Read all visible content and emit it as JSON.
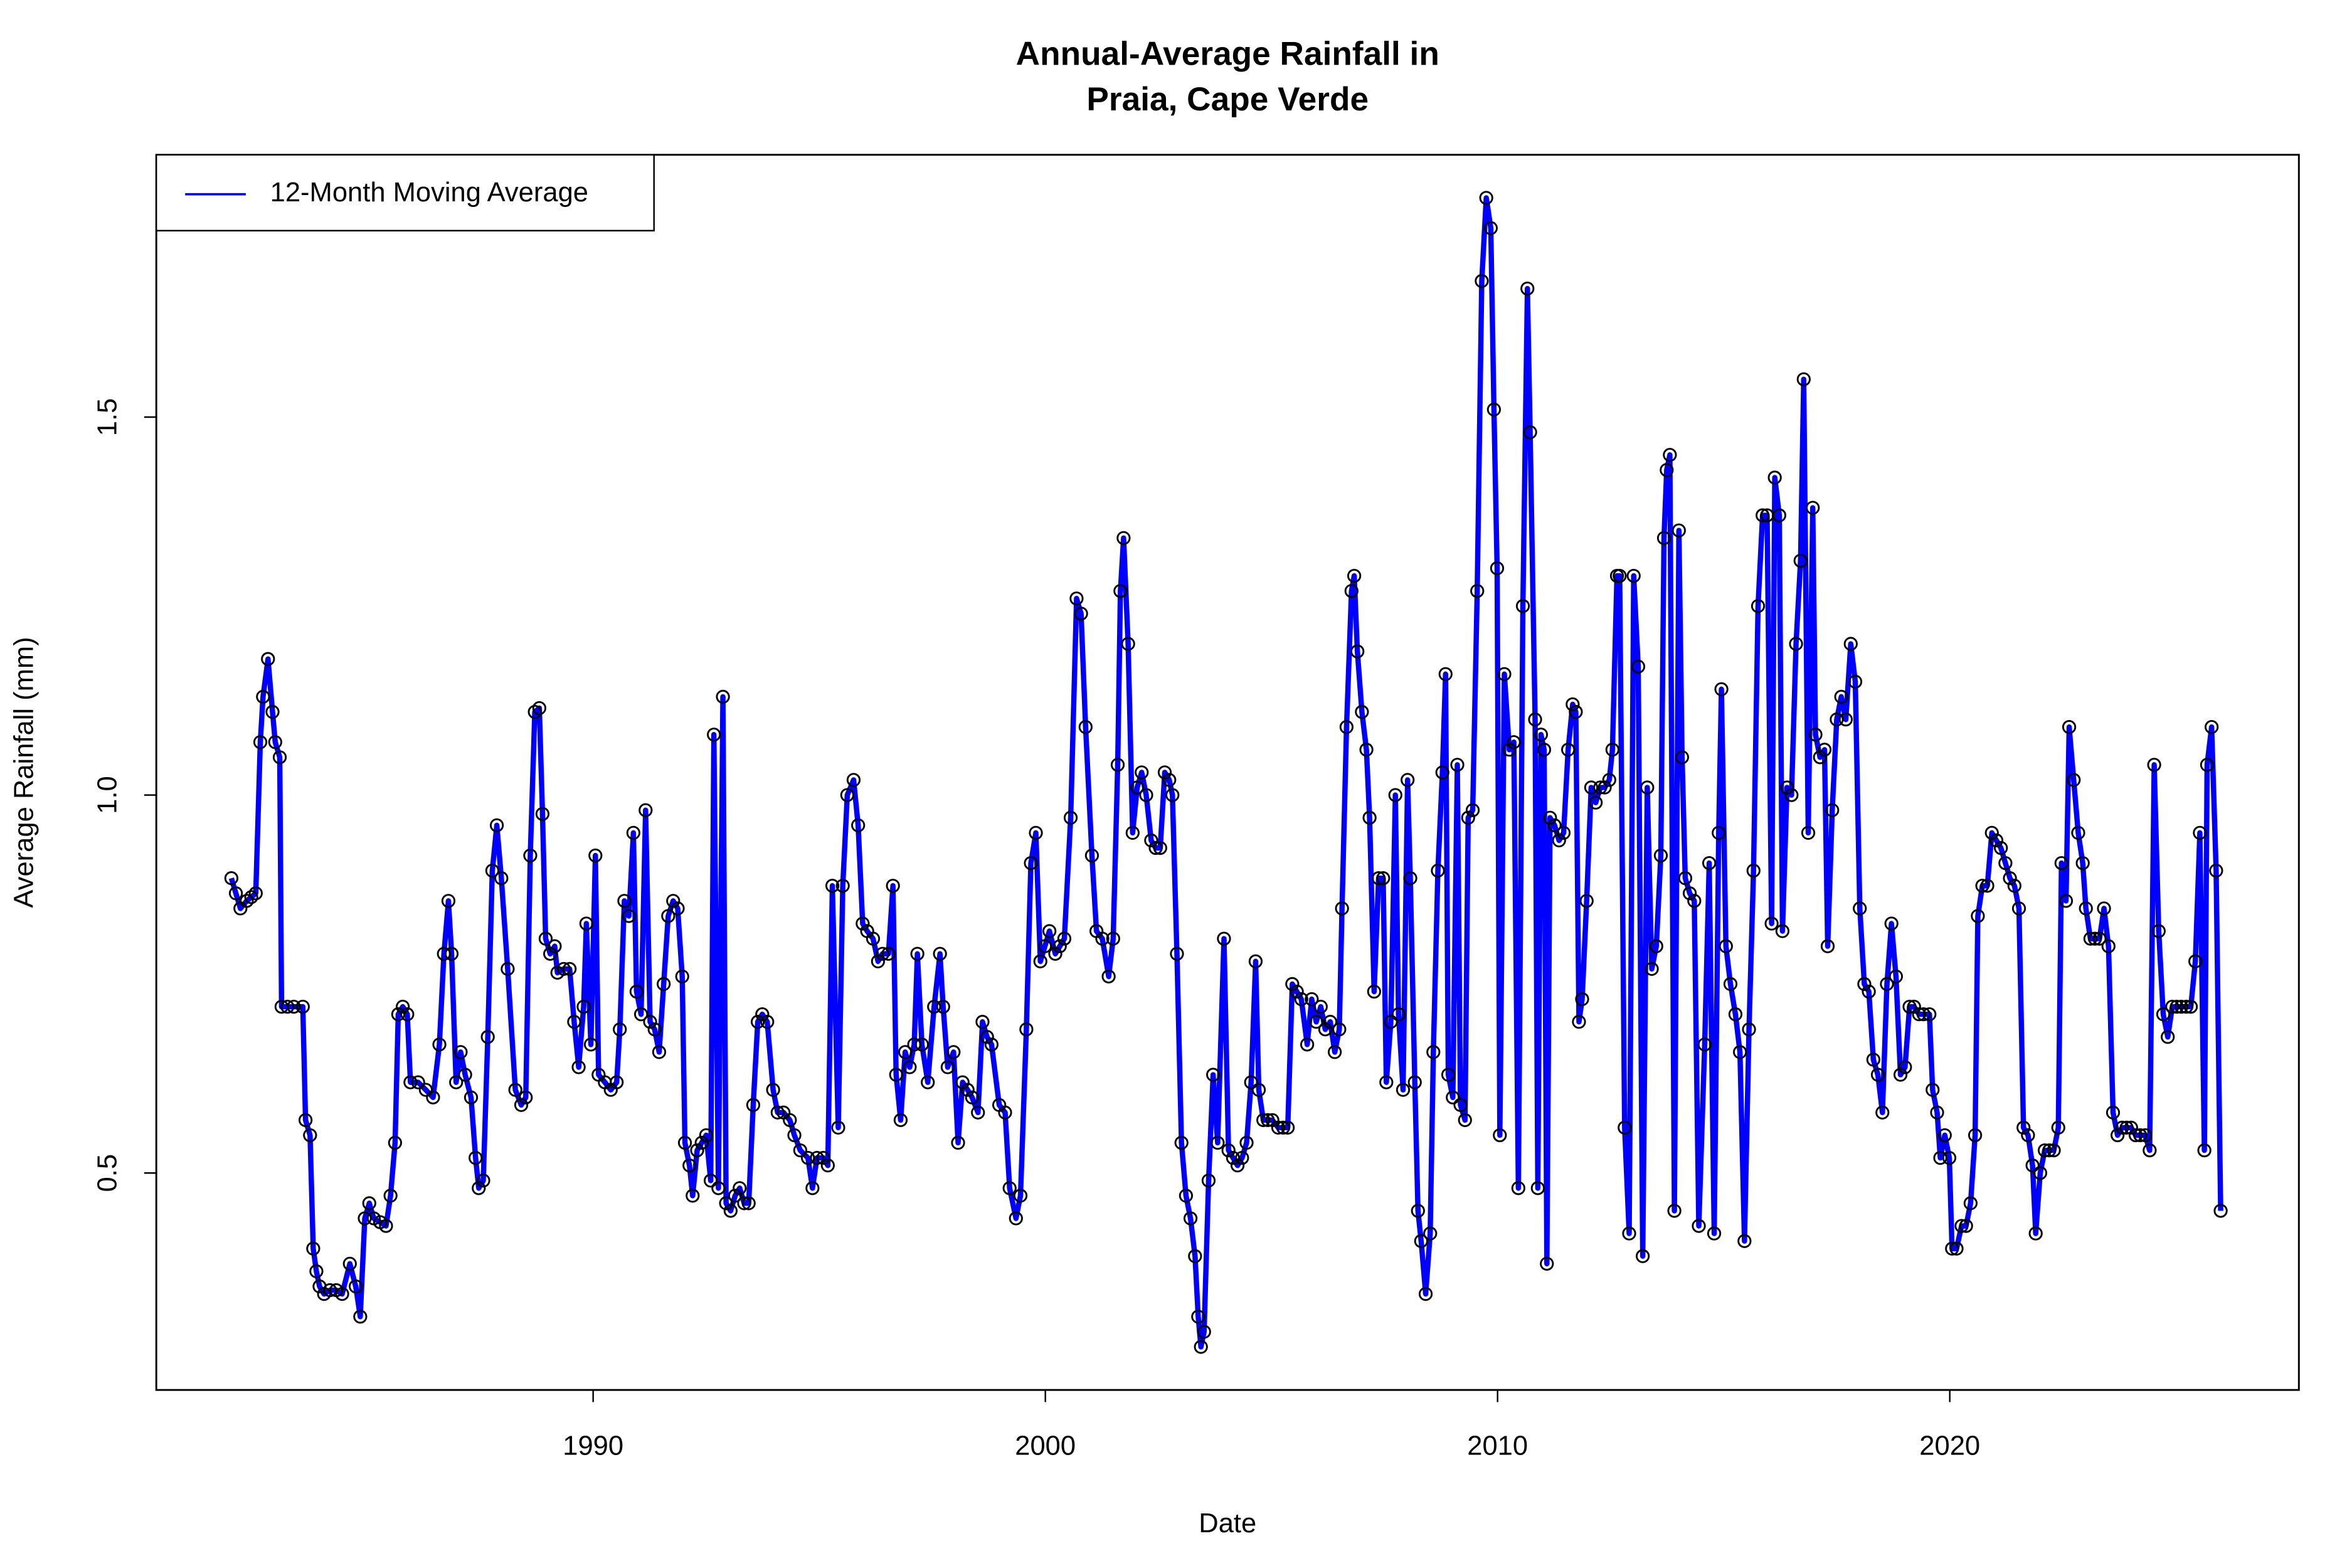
{
  "chart_data": {
    "type": "line",
    "title": [
      "Annual-Average Rainfall in",
      "Praia, Cape Verde"
    ],
    "x_label": "Date",
    "y_label": "Average Rainfall (mm)",
    "xlim": [
      1980.34,
      2027.72
    ],
    "ylim": [
      0.213,
      1.847
    ],
    "xticks": [
      1990,
      2000,
      2010,
      2020
    ],
    "yticks": [
      0.5,
      {
        "value": 1,
        "label": "1.0"
      },
      1.5
    ],
    "legend_position": "top-left",
    "marker_color": "#000000",
    "x": [
      1982.0,
      1982.1,
      1982.2,
      1982.34,
      1982.44,
      1982.54,
      1982.64,
      1982.7,
      1982.81,
      1982.91,
      1982.97,
      1983.07,
      1983.11,
      1983.24,
      1983.38,
      1983.58,
      1983.64,
      1983.74,
      1983.81,
      1983.88,
      1983.95,
      1984.05,
      1984.18,
      1984.32,
      1984.45,
      1984.62,
      1984.75,
      1984.85,
      1984.95,
      1985.05,
      1985.15,
      1985.29,
      1985.42,
      1985.52,
      1985.62,
      1985.69,
      1985.79,
      1985.89,
      1985.96,
      1986.13,
      1986.3,
      1986.46,
      1986.6,
      1986.7,
      1986.8,
      1986.87,
      1986.97,
      1987.07,
      1987.17,
      1987.3,
      1987.4,
      1987.47,
      1987.57,
      1987.67,
      1987.77,
      1987.87,
      1987.97,
      1988.11,
      1988.28,
      1988.41,
      1988.51,
      1988.61,
      1988.71,
      1988.81,
      1988.88,
      1988.95,
      1989.05,
      1989.15,
      1989.21,
      1989.35,
      1989.48,
      1989.58,
      1989.68,
      1989.79,
      1989.85,
      1989.95,
      1990.05,
      1990.12,
      1990.26,
      1990.39,
      1990.52,
      1990.59,
      1990.69,
      1990.79,
      1990.89,
      1990.96,
      1991.06,
      1991.16,
      1991.26,
      1991.36,
      1991.46,
      1991.56,
      1991.66,
      1991.77,
      1991.87,
      1991.97,
      1992.03,
      1992.13,
      1992.2,
      1992.3,
      1992.4,
      1992.5,
      1992.6,
      1992.67,
      1992.77,
      1992.87,
      1992.94,
      1993.04,
      1993.14,
      1993.24,
      1993.34,
      1993.44,
      1993.54,
      1993.64,
      1993.74,
      1993.85,
      1993.98,
      1994.08,
      1994.21,
      1994.35,
      1994.45,
      1994.58,
      1994.75,
      1994.85,
      1994.95,
      1995.09,
      1995.19,
      1995.29,
      1995.42,
      1995.52,
      1995.62,
      1995.76,
      1995.86,
      1995.96,
      1996.06,
      1996.19,
      1996.3,
      1996.4,
      1996.53,
      1996.63,
      1996.7,
      1996.8,
      1996.9,
      1997.0,
      1997.1,
      1997.17,
      1997.27,
      1997.4,
      1997.54,
      1997.67,
      1997.74,
      1997.84,
      1997.97,
      1998.07,
      1998.17,
      1998.28,
      1998.38,
      1998.51,
      1998.61,
      1998.71,
      1998.81,
      1998.98,
      1999.11,
      1999.21,
      1999.35,
      1999.45,
      1999.58,
      1999.68,
      1999.79,
      1999.89,
      1999.99,
      2000.09,
      2000.22,
      2000.32,
      2000.42,
      2000.56,
      2000.69,
      2000.79,
      2000.89,
      2001.03,
      2001.13,
      2001.26,
      2001.4,
      2001.5,
      2001.6,
      2001.66,
      2001.73,
      2001.83,
      2001.93,
      2002.03,
      2002.13,
      2002.23,
      2002.34,
      2002.44,
      2002.54,
      2002.64,
      2002.74,
      2002.81,
      2002.91,
      2003.01,
      2003.11,
      2003.21,
      2003.31,
      2003.38,
      2003.44,
      2003.51,
      2003.61,
      2003.71,
      2003.81,
      2003.95,
      2004.05,
      2004.15,
      2004.25,
      2004.35,
      2004.45,
      2004.55,
      2004.65,
      2004.72,
      2004.82,
      2004.92,
      2005.02,
      2005.15,
      2005.26,
      2005.36,
      2005.46,
      2005.56,
      2005.66,
      2005.79,
      2005.89,
      2005.99,
      2006.09,
      2006.19,
      2006.3,
      2006.4,
      2006.5,
      2006.56,
      2006.66,
      2006.77,
      2006.83,
      2006.9,
      2007.0,
      2007.1,
      2007.17,
      2007.27,
      2007.37,
      2007.47,
      2007.54,
      2007.64,
      2007.74,
      2007.81,
      2007.91,
      2008.01,
      2008.07,
      2008.17,
      2008.24,
      2008.31,
      2008.41,
      2008.51,
      2008.58,
      2008.68,
      2008.78,
      2008.85,
      2008.91,
      2009.01,
      2009.11,
      2009.18,
      2009.28,
      2009.35,
      2009.45,
      2009.55,
      2009.65,
      2009.75,
      2009.85,
      2009.92,
      2009.99,
      2010.05,
      2010.15,
      2010.26,
      2010.36,
      2010.46,
      2010.56,
      2010.66,
      2010.72,
      2010.83,
      2010.89,
      2010.96,
      2011.03,
      2011.09,
      2011.16,
      2011.26,
      2011.36,
      2011.46,
      2011.56,
      2011.66,
      2011.73,
      2011.8,
      2011.87,
      2011.97,
      2012.07,
      2012.17,
      2012.27,
      2012.37,
      2012.47,
      2012.54,
      2012.64,
      2012.7,
      2012.81,
      2012.91,
      2013.01,
      2013.11,
      2013.21,
      2013.31,
      2013.41,
      2013.51,
      2013.61,
      2013.68,
      2013.74,
      2013.81,
      2013.91,
      2014.01,
      2014.08,
      2014.15,
      2014.25,
      2014.35,
      2014.45,
      2014.58,
      2014.68,
      2014.79,
      2014.89,
      2014.95,
      2015.05,
      2015.15,
      2015.26,
      2015.36,
      2015.46,
      2015.56,
      2015.66,
      2015.76,
      2015.86,
      2015.96,
      2016.06,
      2016.13,
      2016.23,
      2016.3,
      2016.4,
      2016.5,
      2016.6,
      2016.7,
      2016.77,
      2016.87,
      2016.97,
      2017.03,
      2017.13,
      2017.23,
      2017.3,
      2017.4,
      2017.5,
      2017.6,
      2017.7,
      2017.81,
      2017.91,
      2018.01,
      2018.11,
      2018.21,
      2018.31,
      2018.41,
      2018.51,
      2018.61,
      2018.71,
      2018.81,
      2018.91,
      2019.01,
      2019.11,
      2019.21,
      2019.32,
      2019.42,
      2019.55,
      2019.62,
      2019.72,
      2019.79,
      2019.89,
      2019.99,
      2020.05,
      2020.15,
      2020.26,
      2020.36,
      2020.46,
      2020.56,
      2020.62,
      2020.72,
      2020.83,
      2020.93,
      2021.03,
      2021.13,
      2021.23,
      2021.33,
      2021.43,
      2021.53,
      2021.63,
      2021.73,
      2021.83,
      2021.9,
      2022.0,
      2022.1,
      2022.2,
      2022.3,
      2022.4,
      2022.47,
      2022.57,
      2022.64,
      2022.74,
      2022.84,
      2022.94,
      2023.01,
      2023.11,
      2023.21,
      2023.31,
      2023.41,
      2023.51,
      2023.61,
      2023.71,
      2023.81,
      2023.91,
      2024.01,
      2024.11,
      2024.21,
      2024.32,
      2024.42,
      2024.52,
      2024.62,
      2024.72,
      2024.82,
      2024.92,
      2025.02,
      2025.12,
      2025.23,
      2025.33,
      2025.43,
      2025.53,
      2025.63,
      2025.69,
      2025.79,
      2025.89,
      2025.99
    ],
    "series": [
      {
        "name": "12-Month Moving Average",
        "color": "#0000ff",
        "values": [
          0.89,
          0.87,
          0.85,
          0.86,
          0.865,
          0.87,
          1.07,
          1.13,
          1.18,
          1.11,
          1.07,
          1.05,
          0.72,
          0.72,
          0.72,
          0.72,
          0.57,
          0.55,
          0.4,
          0.37,
          0.35,
          0.34,
          0.345,
          0.345,
          0.34,
          0.38,
          0.35,
          0.31,
          0.44,
          0.46,
          0.44,
          0.435,
          0.43,
          0.47,
          0.54,
          0.71,
          0.72,
          0.71,
          0.62,
          0.62,
          0.61,
          0.6,
          0.67,
          0.79,
          0.86,
          0.79,
          0.62,
          0.66,
          0.63,
          0.6,
          0.52,
          0.48,
          0.49,
          0.68,
          0.9,
          0.96,
          0.89,
          0.77,
          0.61,
          0.59,
          0.6,
          0.92,
          1.11,
          1.115,
          0.975,
          0.81,
          0.79,
          0.8,
          0.765,
          0.77,
          0.77,
          0.7,
          0.64,
          0.72,
          0.83,
          0.67,
          0.92,
          0.63,
          0.62,
          0.61,
          0.62,
          0.69,
          0.86,
          0.84,
          0.95,
          0.74,
          0.71,
          0.98,
          0.7,
          0.69,
          0.66,
          0.75,
          0.84,
          0.86,
          0.85,
          0.76,
          0.54,
          0.51,
          0.47,
          0.53,
          0.54,
          0.55,
          0.49,
          1.08,
          0.48,
          1.13,
          0.46,
          0.45,
          0.47,
          0.48,
          0.46,
          0.46,
          0.59,
          0.7,
          0.71,
          0.7,
          0.61,
          0.58,
          0.58,
          0.57,
          0.55,
          0.53,
          0.52,
          0.48,
          0.52,
          0.52,
          0.51,
          0.88,
          0.56,
          0.88,
          1.0,
          1.02,
          0.96,
          0.83,
          0.82,
          0.81,
          0.78,
          0.79,
          0.79,
          0.88,
          0.63,
          0.57,
          0.66,
          0.64,
          0.67,
          0.79,
          0.67,
          0.62,
          0.72,
          0.79,
          0.72,
          0.64,
          0.66,
          0.54,
          0.62,
          0.61,
          0.6,
          0.58,
          0.7,
          0.68,
          0.67,
          0.59,
          0.58,
          0.48,
          0.44,
          0.47,
          0.69,
          0.91,
          0.95,
          0.78,
          0.8,
          0.82,
          0.79,
          0.8,
          0.81,
          0.97,
          1.26,
          1.24,
          1.09,
          0.92,
          0.82,
          0.81,
          0.76,
          0.81,
          1.04,
          1.27,
          1.34,
          1.2,
          0.95,
          1.01,
          1.03,
          1.0,
          0.94,
          0.93,
          0.93,
          1.03,
          1.02,
          1.0,
          0.79,
          0.54,
          0.47,
          0.44,
          0.39,
          0.31,
          0.27,
          0.29,
          0.49,
          0.63,
          0.54,
          0.81,
          0.53,
          0.52,
          0.51,
          0.52,
          0.54,
          0.62,
          0.78,
          0.61,
          0.57,
          0.57,
          0.57,
          0.56,
          0.56,
          0.56,
          0.75,
          0.74,
          0.73,
          0.67,
          0.73,
          0.7,
          0.72,
          0.69,
          0.7,
          0.66,
          0.69,
          0.85,
          1.09,
          1.27,
          1.29,
          1.19,
          1.11,
          1.06,
          0.97,
          0.74,
          0.89,
          0.89,
          0.62,
          0.7,
          1.0,
          0.71,
          0.61,
          1.02,
          0.89,
          0.62,
          0.45,
          0.41,
          0.34,
          0.42,
          0.66,
          0.9,
          1.03,
          1.16,
          0.63,
          0.6,
          1.04,
          0.59,
          0.57,
          0.97,
          0.98,
          1.27,
          1.68,
          1.79,
          1.75,
          1.51,
          1.3,
          0.55,
          1.16,
          1.06,
          1.07,
          0.48,
          1.25,
          1.67,
          1.48,
          1.1,
          0.48,
          1.08,
          1.06,
          0.38,
          0.97,
          0.96,
          0.94,
          0.95,
          1.06,
          1.12,
          1.11,
          0.7,
          0.73,
          0.86,
          1.01,
          0.99,
          1.01,
          1.01,
          1.02,
          1.06,
          1.29,
          1.29,
          0.56,
          0.42,
          1.29,
          1.17,
          0.39,
          1.01,
          0.77,
          0.8,
          0.92,
          1.34,
          1.43,
          1.45,
          0.45,
          1.35,
          1.05,
          0.89,
          0.87,
          0.86,
          0.43,
          0.67,
          0.91,
          0.42,
          0.95,
          1.14,
          0.8,
          0.75,
          0.71,
          0.66,
          0.41,
          0.69,
          0.9,
          1.25,
          1.37,
          1.37,
          0.83,
          1.42,
          1.37,
          0.82,
          1.01,
          1.0,
          1.2,
          1.31,
          1.55,
          0.95,
          1.38,
          1.08,
          1.05,
          1.06,
          0.8,
          0.98,
          1.1,
          1.13,
          1.1,
          1.2,
          1.15,
          0.85,
          0.75,
          0.74,
          0.65,
          0.63,
          0.58,
          0.75,
          0.83,
          0.76,
          0.63,
          0.64,
          0.72,
          0.72,
          0.71,
          0.71,
          0.71,
          0.61,
          0.58,
          0.52,
          0.55,
          0.52,
          0.4,
          0.4,
          0.43,
          0.43,
          0.46,
          0.55,
          0.84,
          0.88,
          0.88,
          0.95,
          0.94,
          0.93,
          0.91,
          0.89,
          0.88,
          0.85,
          0.56,
          0.55,
          0.51,
          0.42,
          0.5,
          0.53,
          0.53,
          0.53,
          0.56,
          0.91,
          0.86,
          1.09,
          1.02,
          0.95,
          0.91,
          0.85,
          0.81,
          0.81,
          0.81,
          0.85,
          0.8,
          0.58,
          0.55,
          0.56,
          0.56,
          0.56,
          0.55,
          0.55,
          0.55,
          0.53,
          1.04,
          0.82,
          0.71,
          0.68,
          0.72,
          0.72,
          0.72,
          0.72,
          0.72,
          0.78,
          0.95,
          0.53,
          1.04,
          1.09,
          0.9,
          0.45
        ]
      }
    ]
  }
}
